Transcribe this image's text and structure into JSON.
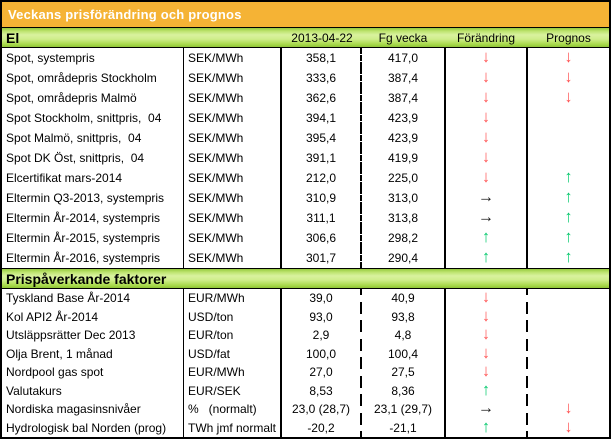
{
  "title": "Veckans prisförändring och prognos",
  "columns": {
    "date": "2013-04-22",
    "prev_week": "Fg vecka",
    "change": "Förändring",
    "forecast": "Prognos"
  },
  "arrows": {
    "down": {
      "glyph": "↓",
      "color": "#ff4f4f",
      "name": "down-arrow"
    },
    "up": {
      "glyph": "↑",
      "color": "#00c96b",
      "name": "up-arrow"
    },
    "flat": {
      "glyph": "→",
      "color": "#1a1a1a",
      "name": "right-arrow"
    }
  },
  "colors": {
    "title_bar_bg": "#f5b335",
    "title_bar_text": "#ffffff",
    "section_header_green_light": "#d9f29e",
    "section_header_green_dark": "#8fc437",
    "arrow_red": "#ff4f4f",
    "arrow_green": "#00c96b",
    "arrow_black": "#1a1a1a"
  },
  "sections": [
    {
      "header": "El",
      "rows": [
        {
          "label": "Spot, systempris",
          "unit": "SEK/MWh",
          "current": "358,1",
          "previous": "417,0",
          "change": "down",
          "forecast": "down"
        },
        {
          "label": "Spot, områdepris Stockholm",
          "unit": "SEK/MWh",
          "current": "333,6",
          "previous": "387,4",
          "change": "down",
          "forecast": "down"
        },
        {
          "label": "Spot, områdepris Malmö",
          "unit": "SEK/MWh",
          "current": "362,6",
          "previous": "387,4",
          "change": "down",
          "forecast": "down"
        },
        {
          "label": "Spot Stockholm, snittpris,  04",
          "unit": "SEK/MWh",
          "current": "394,1",
          "previous": "423,9",
          "change": "down",
          "forecast": ""
        },
        {
          "label": "Spot Malmö, snittpris,  04",
          "unit": "SEK/MWh",
          "current": "395,4",
          "previous": "423,9",
          "change": "down",
          "forecast": ""
        },
        {
          "label": "Spot DK Öst, snittpris,  04",
          "unit": "SEK/MWh",
          "current": "391,1",
          "previous": "419,9",
          "change": "down",
          "forecast": ""
        },
        {
          "label": "Elcertifikat mars-2014",
          "unit": "SEK/MWh",
          "current": "212,0",
          "previous": "225,0",
          "change": "down",
          "forecast": "up"
        },
        {
          "label": "Eltermin Q3-2013, systempris",
          "unit": "SEK/MWh",
          "current": "310,9",
          "previous": "313,0",
          "change": "flat",
          "forecast": "up"
        },
        {
          "label": "Eltermin År-2014, systempris",
          "unit": "SEK/MWh",
          "current": "311,1",
          "previous": "313,8",
          "change": "flat",
          "forecast": "up"
        },
        {
          "label": "Eltermin År-2015, systempris",
          "unit": "SEK/MWh",
          "current": "306,6",
          "previous": "298,2",
          "change": "up",
          "forecast": "up"
        },
        {
          "label": "Eltermin År-2016, systempris",
          "unit": "SEK/MWh",
          "current": "301,7",
          "previous": "290,4",
          "change": "up",
          "forecast": "up"
        }
      ]
    },
    {
      "header": "Prispåverkande faktorer",
      "rows": [
        {
          "label": "Tyskland Base År-2014",
          "unit": "EUR/MWh",
          "current": "39,0",
          "previous": "40,9",
          "change": "down",
          "forecast": ""
        },
        {
          "label": "Kol API2 År-2014",
          "unit": "USD/ton",
          "current": "93,0",
          "previous": "93,8",
          "change": "down",
          "forecast": ""
        },
        {
          "label": "Utsläppsrätter Dec 2013",
          "unit": "EUR/ton",
          "current": "2,9",
          "previous": "4,8",
          "change": "down",
          "forecast": ""
        },
        {
          "label": "Olja Brent, 1 månad",
          "unit": "USD/fat",
          "current": "100,0",
          "previous": "100,4",
          "change": "down",
          "forecast": ""
        },
        {
          "label": "Nordpool gas spot",
          "unit": "EUR/MWh",
          "current": "27,0",
          "previous": "27,5",
          "change": "down",
          "forecast": ""
        },
        {
          "label": "Valutakurs",
          "unit": "EUR/SEK",
          "current": "8,53",
          "previous": "8,36",
          "change": "up",
          "forecast": ""
        },
        {
          "label": "Nordiska magasinsnivåer",
          "unit": "%   (normalt)",
          "current": "23,0 (28,7)",
          "previous": "23,1 (29,7)",
          "change": "flat",
          "forecast": "down"
        },
        {
          "label": "Hydrologisk bal Norden (prog)",
          "unit": "TWh jmf normalt",
          "current": "-20,2",
          "previous": "-21,1",
          "change": "up",
          "forecast": "down"
        }
      ]
    }
  ]
}
